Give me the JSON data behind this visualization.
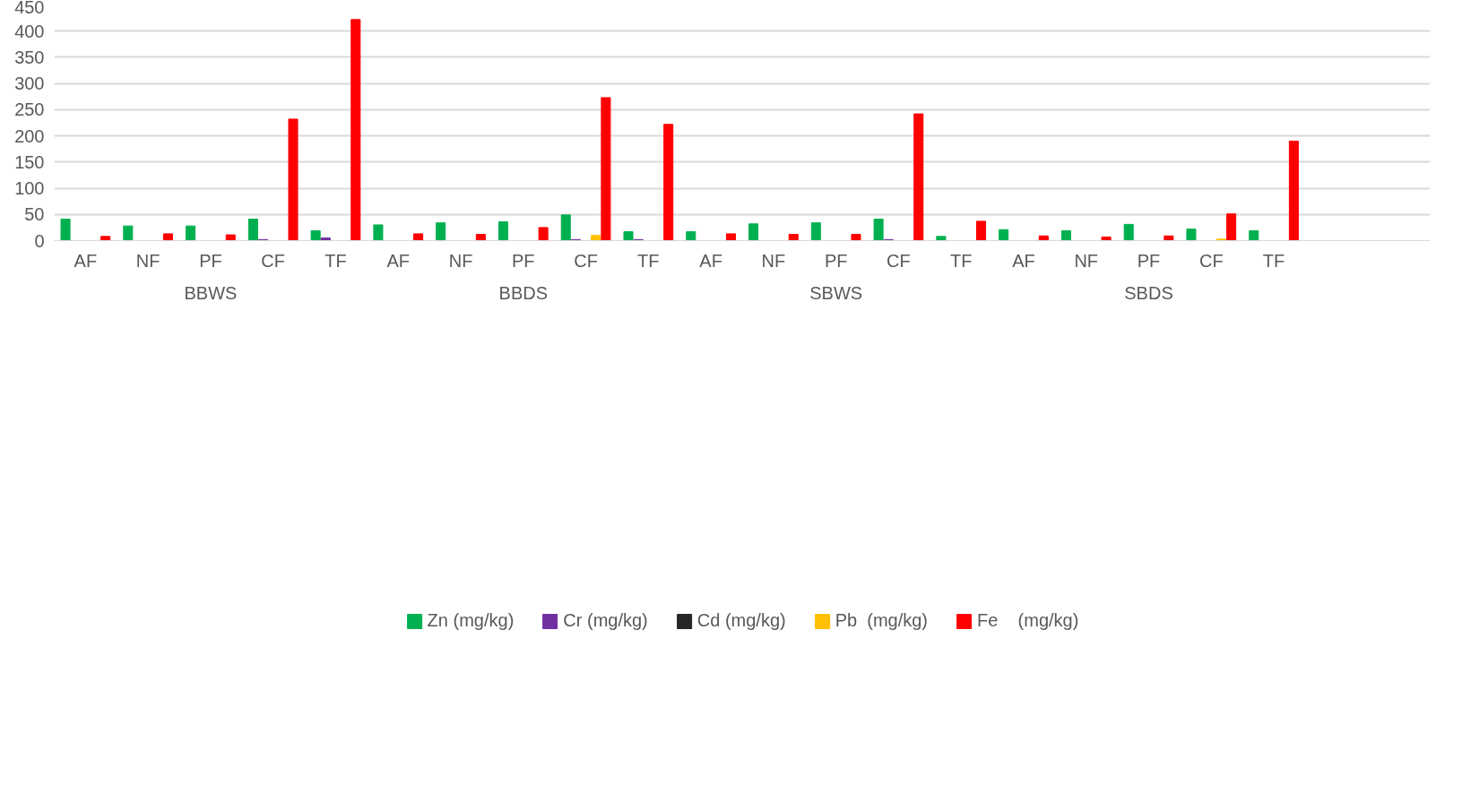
{
  "chart_data": {
    "type": "bar",
    "categories": [
      "AF",
      "NF",
      "PF",
      "CF",
      "TF",
      "AF",
      "NF",
      "PF",
      "CF",
      "TF",
      "AF",
      "NF",
      "PF",
      "CF",
      "TF",
      "AF",
      "NF",
      "PF",
      "CF",
      "TF",
      null,
      null
    ],
    "series": [
      {
        "name": "Zn (mg/kg)",
        "color": "#00b050",
        "values": [
          41,
          28,
          28,
          41,
          19,
          30,
          34,
          36,
          49,
          17,
          17,
          32,
          34,
          41,
          8,
          21,
          19,
          31,
          22,
          19,
          null,
          null
        ]
      },
      {
        "name": "Cr (mg/kg)",
        "color": "#7030a0",
        "values": [
          null,
          null,
          null,
          2,
          5,
          null,
          null,
          null,
          2,
          2,
          null,
          null,
          null,
          2,
          null,
          null,
          null,
          null,
          null,
          null,
          null,
          null
        ]
      },
      {
        "name": "Cd (mg/kg)",
        "color": "#262626",
        "values": [
          0,
          0,
          0,
          0,
          0,
          0,
          0,
          0,
          0,
          0,
          0,
          0,
          0,
          0,
          0,
          0,
          0,
          0,
          0,
          0,
          null,
          null
        ]
      },
      {
        "name": "Pb  (mg/kg)",
        "color": "#ffc000",
        "values": [
          null,
          null,
          null,
          null,
          null,
          null,
          null,
          null,
          10,
          null,
          null,
          null,
          null,
          null,
          null,
          null,
          null,
          null,
          3,
          null,
          null,
          null
        ]
      },
      {
        "name": "Fe    (mg/kg)",
        "color": "#ff0000",
        "values": [
          8,
          13,
          11,
          232,
          422,
          13,
          12,
          25,
          273,
          222,
          13,
          12,
          12,
          242,
          37,
          9,
          7,
          9,
          51,
          190,
          null,
          null
        ]
      }
    ],
    "annotations": [
      "BBWS",
      "BBDS",
      "SBWS",
      "SBDS"
    ],
    "ylim": [
      0,
      450
    ],
    "yticks": [
      0,
      50,
      100,
      150,
      200,
      250,
      300,
      350,
      400,
      450
    ],
    "grid": "y",
    "legend": "bottom"
  }
}
